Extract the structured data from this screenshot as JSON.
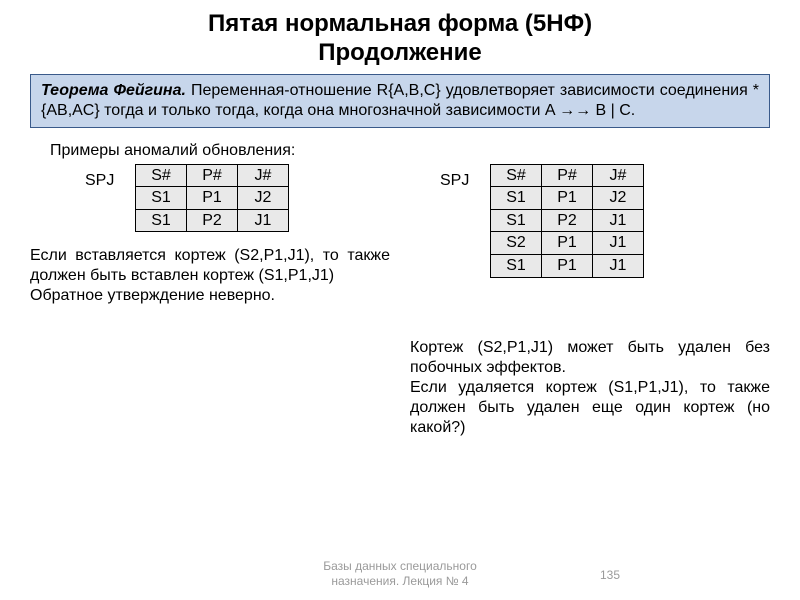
{
  "title_line1": "Пятая нормальная форма (5НФ)",
  "title_line2": "Продолжение",
  "theorem": {
    "lead": "Теорема Фейгина.",
    "body": " Переменная-отношение R{A,B,C} удовлетворяет зависимости соединения *{AB,AC} тогда и только тогда, когда она многозначной зависимости A →→ B | C."
  },
  "examples_heading": "Примеры аномалий обновления:",
  "left": {
    "label": "SPJ",
    "headers": [
      "S#",
      "P#",
      "J#"
    ],
    "rows": [
      [
        "S1",
        "P1",
        "J2"
      ],
      [
        "S1",
        "P2",
        "J1"
      ]
    ],
    "note": "  Если вставляется кортеж (S2,P1,J1), то также должен быть вставлен кортеж (S1,P1,J1)\n  Обратное утверждение неверно."
  },
  "right": {
    "label": "SPJ",
    "headers": [
      "S#",
      "P#",
      "J#"
    ],
    "rows": [
      [
        "S1",
        "P1",
        "J2"
      ],
      [
        "S1",
        "P2",
        "J1"
      ],
      [
        "S2",
        "P1",
        "J1"
      ],
      [
        "S1",
        "P1",
        "J1"
      ]
    ],
    "note": "Кортеж (S2,P1,J1) может быть удален без побочных эффектов.\nЕсли удаляется кортеж (S1,P1,J1), то также должен быть удален еще один кортеж (но какой?)"
  },
  "footer": {
    "line1": "Базы данных специального",
    "line2": "назначения. Лекция № 4",
    "page": "135"
  },
  "colors": {
    "theorem_bg": "#c7d6eb",
    "theorem_border": "#3a5a8a",
    "table_cell_bg": "#e9e9e9",
    "footer_color": "#9a9a9a"
  }
}
